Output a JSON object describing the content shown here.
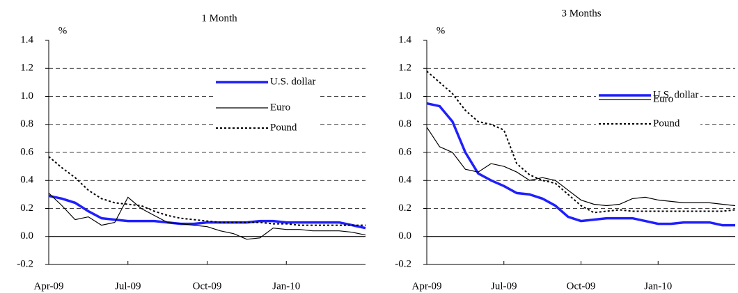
{
  "chart_data": [
    {
      "type": "line",
      "title": "1 Month",
      "ylabel": "%",
      "categories": [
        "Apr-09",
        null,
        null,
        null,
        null,
        null,
        "Jul-09",
        null,
        null,
        null,
        null,
        null,
        "Oct-09",
        null,
        null,
        null,
        null,
        null,
        "Jan-10",
        null,
        null,
        null,
        null,
        null,
        null
      ],
      "ylim": [
        -0.2,
        1.4
      ],
      "yticks": [
        -0.2,
        0.0,
        0.2,
        0.4,
        0.6,
        0.8,
        1.0,
        1.2,
        1.4
      ],
      "grid": true,
      "legend": "upper right",
      "series": [
        {
          "name": "U.S. dollar",
          "color": "#1f1fff",
          "line_style": "solid",
          "values": [
            0.29,
            0.27,
            0.24,
            0.18,
            0.13,
            0.12,
            0.11,
            0.11,
            0.11,
            0.1,
            0.09,
            0.09,
            0.1,
            0.1,
            0.1,
            0.1,
            0.11,
            0.11,
            0.1,
            0.1,
            0.1,
            0.1,
            0.1,
            0.08,
            0.06
          ]
        },
        {
          "name": "Euro",
          "color": "#000000",
          "line_style": "thin",
          "values": [
            0.31,
            0.22,
            0.12,
            0.14,
            0.08,
            0.1,
            0.28,
            0.2,
            0.15,
            0.1,
            0.09,
            0.08,
            0.07,
            0.04,
            0.02,
            -0.02,
            -0.01,
            0.06,
            0.05,
            0.05,
            0.04,
            0.04,
            0.04,
            0.03,
            0.01
          ]
        },
        {
          "name": "Pound",
          "color": "#000000",
          "line_style": "dotted",
          "values": [
            0.57,
            0.49,
            0.42,
            0.33,
            0.27,
            0.24,
            0.23,
            0.22,
            0.18,
            0.15,
            0.13,
            0.12,
            0.11,
            0.1,
            0.1,
            0.1,
            0.1,
            0.09,
            0.09,
            0.08,
            0.08,
            0.08,
            0.08,
            0.08,
            0.08
          ]
        }
      ]
    },
    {
      "type": "line",
      "title": "3 Months",
      "ylabel": "%",
      "categories": [
        "Apr-09",
        null,
        null,
        null,
        null,
        null,
        "Jul-09",
        null,
        null,
        null,
        null,
        null,
        "Oct-09",
        null,
        null,
        null,
        null,
        null,
        "Jan-10",
        null,
        null,
        null,
        null,
        null,
        null
      ],
      "ylim": [
        -0.2,
        1.4
      ],
      "yticks": [
        -0.2,
        0.0,
        0.2,
        0.4,
        0.6,
        0.8,
        1.0,
        1.2,
        1.4
      ],
      "grid": true,
      "legend": "upper right",
      "series": [
        {
          "name": "U.S. dollar",
          "color": "#1f1fff",
          "line_style": "solid",
          "values": [
            0.95,
            0.93,
            0.82,
            0.6,
            0.45,
            0.4,
            0.36,
            0.31,
            0.3,
            0.27,
            0.22,
            0.14,
            0.11,
            0.12,
            0.13,
            0.13,
            0.13,
            0.11,
            0.09,
            0.09,
            0.1,
            0.1,
            0.1,
            0.08,
            0.08
          ]
        },
        {
          "name": "Euro",
          "color": "#000000",
          "line_style": "thin",
          "values": [
            0.78,
            0.64,
            0.6,
            0.48,
            0.46,
            0.52,
            0.5,
            0.46,
            0.4,
            0.42,
            0.4,
            0.33,
            0.26,
            0.23,
            0.22,
            0.23,
            0.27,
            0.28,
            0.26,
            0.25,
            0.24,
            0.24,
            0.24,
            0.23,
            0.22
          ]
        },
        {
          "name": "Pound",
          "color": "#000000",
          "line_style": "dotted",
          "values": [
            1.18,
            1.1,
            1.02,
            0.9,
            0.82,
            0.8,
            0.76,
            0.52,
            0.44,
            0.4,
            0.38,
            0.3,
            0.22,
            0.17,
            0.18,
            0.19,
            0.18,
            0.18,
            0.18,
            0.18,
            0.18,
            0.18,
            0.18,
            0.18,
            0.19
          ]
        }
      ]
    }
  ]
}
